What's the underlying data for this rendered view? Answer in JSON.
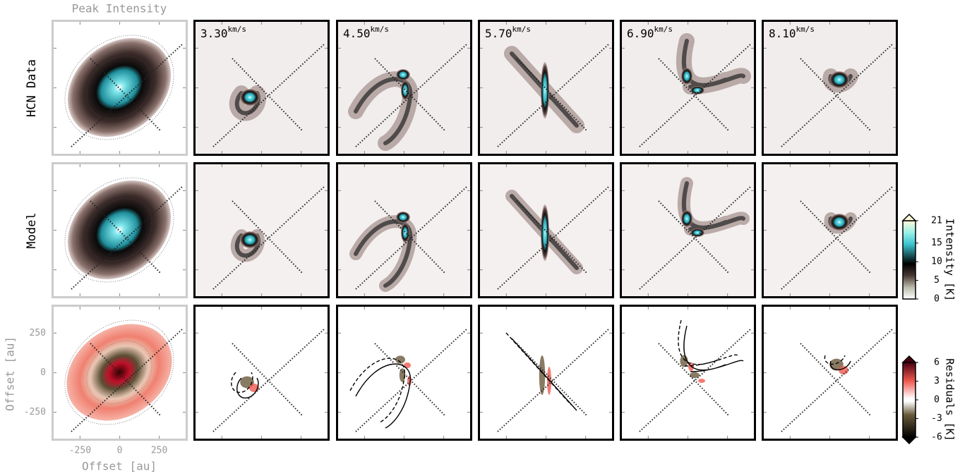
{
  "figure": {
    "title": "Peak Intensity",
    "rows": [
      "HCN Data",
      "Model"
    ],
    "velocities": [
      {
        "value": "3.30",
        "unit": "km/s"
      },
      {
        "value": "4.50",
        "unit": "km/s"
      },
      {
        "value": "5.70",
        "unit": "km/s"
      },
      {
        "value": "6.90",
        "unit": "km/s"
      },
      {
        "value": "8.10",
        "unit": "km/s"
      }
    ],
    "axes": {
      "xlabel": "Offset [au]",
      "ylabel": "Offset [au]",
      "xlim": [
        -430,
        430
      ],
      "ylim": [
        -430,
        430
      ],
      "xticks": [
        -250,
        0,
        250
      ],
      "yticks": [
        -250,
        0,
        250
      ]
    },
    "colorbars": [
      {
        "label": "Intensity [K]",
        "lim": [
          0,
          21
        ],
        "ticks": [
          0,
          5,
          10,
          15,
          21
        ]
      },
      {
        "label": "Residuals [K]",
        "lim": [
          -6,
          6
        ],
        "ticks": [
          -6,
          -3,
          0,
          3,
          6
        ]
      }
    ]
  }
}
